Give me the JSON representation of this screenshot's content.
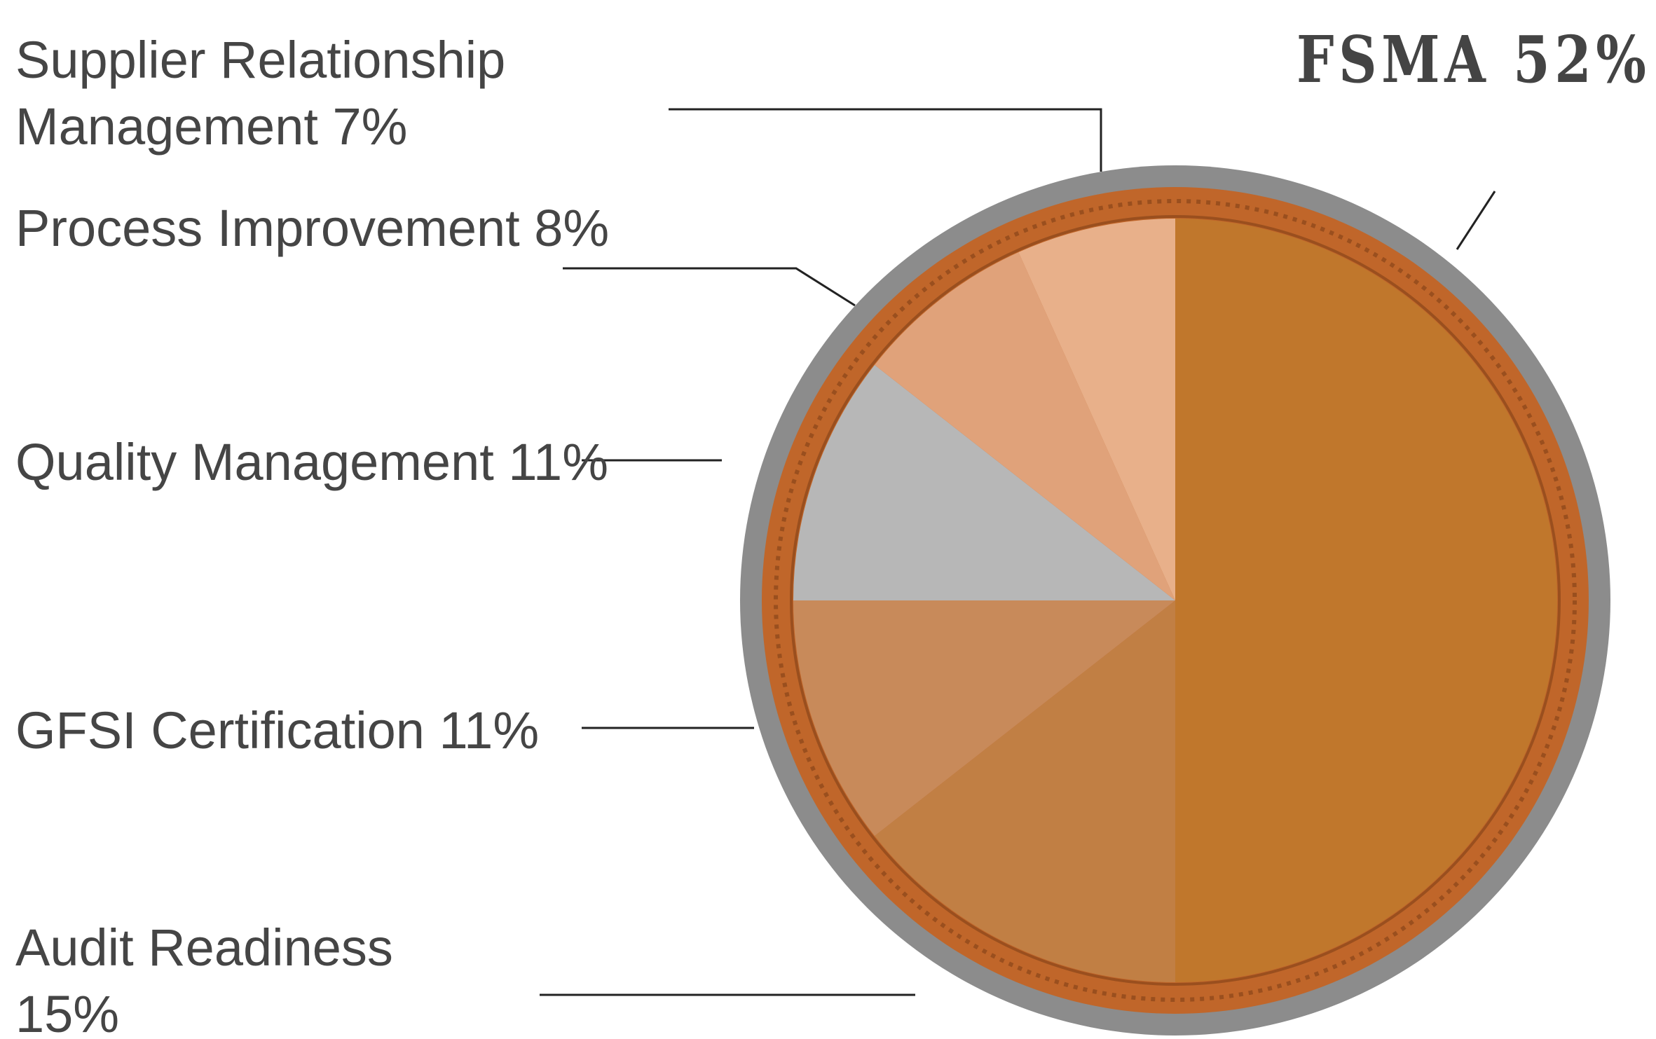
{
  "chart_data": {
    "type": "pie",
    "categories": [
      "FSMA",
      "Audit Readiness",
      "GFSI Certification",
      "Quality Management",
      "Process Improvement",
      "Supplier Relationship Management"
    ],
    "values": [
      52,
      15,
      11,
      11,
      8,
      7
    ],
    "value_labels": [
      "52%",
      "15%",
      "11%",
      "11%",
      "8%",
      "7%"
    ],
    "colors": [
      "#c0772c",
      "#c17f44",
      "#c88a5a",
      "#b7b7b7",
      "#e0a27a",
      "#e8b08a"
    ]
  }
}
